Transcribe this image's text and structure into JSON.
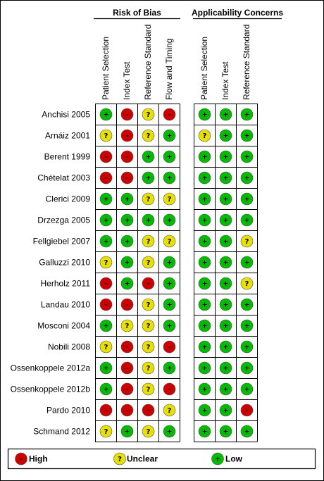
{
  "groups": [
    {
      "title": "Risk of Bias",
      "columns": [
        "Patient Selection",
        "Index Test",
        "Reference Standard",
        "Flow and Timing"
      ]
    },
    {
      "title": "Applicability Concerns",
      "columns": [
        "Patient Selection",
        "Index Test",
        "Reference Standard"
      ]
    }
  ],
  "studies": [
    {
      "name": "Anchisi 2005",
      "risk": [
        "low",
        "high",
        "unclear",
        "high"
      ],
      "applicability": [
        "low",
        "low",
        "low"
      ]
    },
    {
      "name": "Arnáiz 2001",
      "risk": [
        "unclear",
        "high",
        "unclear",
        "low"
      ],
      "applicability": [
        "unclear",
        "low",
        "low"
      ]
    },
    {
      "name": "Berent 1999",
      "risk": [
        "high",
        "high",
        "low",
        "low"
      ],
      "applicability": [
        "low",
        "low",
        "low"
      ]
    },
    {
      "name": "Chételat 2003",
      "risk": [
        "high",
        "high",
        "low",
        "low"
      ],
      "applicability": [
        "low",
        "low",
        "low"
      ]
    },
    {
      "name": "Clerici 2009",
      "risk": [
        "low",
        "low",
        "unclear",
        "unclear"
      ],
      "applicability": [
        "low",
        "low",
        "low"
      ]
    },
    {
      "name": "Drzezga 2005",
      "risk": [
        "low",
        "low",
        "low",
        "low"
      ],
      "applicability": [
        "low",
        "low",
        "low"
      ]
    },
    {
      "name": "Fellgiebel 2007",
      "risk": [
        "low",
        "low",
        "unclear",
        "unclear"
      ],
      "applicability": [
        "low",
        "low",
        "unclear"
      ]
    },
    {
      "name": "Galluzzi 2010",
      "risk": [
        "unclear",
        "low",
        "unclear",
        "low"
      ],
      "applicability": [
        "low",
        "low",
        "low"
      ]
    },
    {
      "name": "Herholz 2011",
      "risk": [
        "high",
        "low",
        "high",
        "low"
      ],
      "applicability": [
        "low",
        "low",
        "unclear"
      ]
    },
    {
      "name": "Landau 2010",
      "risk": [
        "high",
        "high",
        "unclear",
        "low"
      ],
      "applicability": [
        "low",
        "low",
        "low"
      ]
    },
    {
      "name": "Mosconi 2004",
      "risk": [
        "low",
        "unclear",
        "unclear",
        "low"
      ],
      "applicability": [
        "low",
        "low",
        "low"
      ]
    },
    {
      "name": "Nobili 2008",
      "risk": [
        "unclear",
        "high",
        "unclear",
        "high"
      ],
      "applicability": [
        "low",
        "low",
        "low"
      ]
    },
    {
      "name": "Ossenkoppele 2012a",
      "risk": [
        "low",
        "high",
        "unclear",
        "low"
      ],
      "applicability": [
        "low",
        "low",
        "low"
      ]
    },
    {
      "name": "Ossenkoppele 2012b",
      "risk": [
        "low",
        "high",
        "unclear",
        "high"
      ],
      "applicability": [
        "low",
        "low",
        "low"
      ]
    },
    {
      "name": "Pardo 2010",
      "risk": [
        "high",
        "high",
        "high",
        "unclear"
      ],
      "applicability": [
        "low",
        "low",
        "high"
      ]
    },
    {
      "name": "Schmand 2012",
      "risk": [
        "unclear",
        "low",
        "unclear",
        "low"
      ],
      "applicability": [
        "low",
        "low",
        "low"
      ]
    }
  ],
  "legend": [
    {
      "key": "high",
      "label": "High",
      "symbol": "–",
      "color": "#cc0000"
    },
    {
      "key": "unclear",
      "label": "Unclear",
      "symbol": "?",
      "color": "#e8e000"
    },
    {
      "key": "low",
      "label": "Low",
      "symbol": "+",
      "color": "#00bb00"
    }
  ]
}
